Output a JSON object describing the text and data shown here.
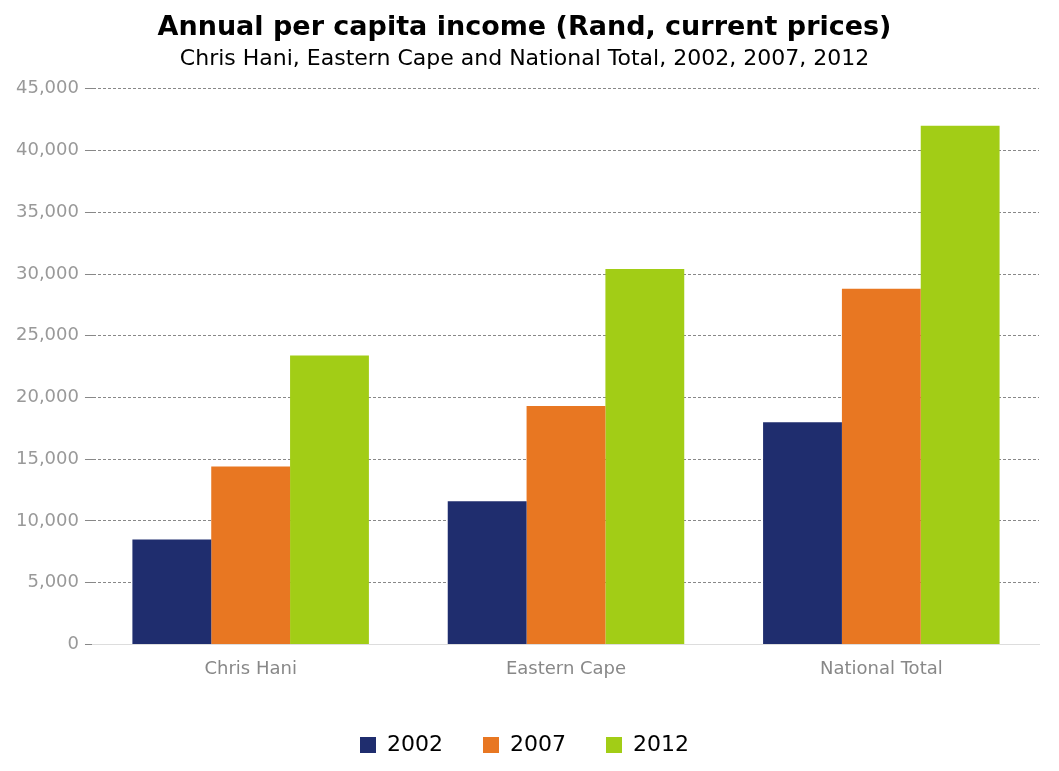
{
  "chart_data": {
    "type": "bar",
    "title": "Annual per capita income (Rand, current prices)",
    "subtitle": "Chris Hani, Eastern Cape and National Total, 2002, 2007, 2012",
    "categories": [
      "Chris Hani",
      "Eastern Cape",
      "National Total"
    ],
    "series": [
      {
        "name": "2002",
        "color": "#1f2d6e",
        "values": [
          8500,
          11600,
          18000
        ]
      },
      {
        "name": "2007",
        "color": "#e87722",
        "values": [
          14400,
          19300,
          28800
        ]
      },
      {
        "name": "2012",
        "color": "#a2cd16",
        "values": [
          23400,
          30400,
          42000
        ]
      }
    ],
    "ylim": [
      0,
      45000
    ],
    "yticks": [
      {
        "value": 0,
        "label": "0"
      },
      {
        "value": 5000,
        "label": "5,000"
      },
      {
        "value": 10000,
        "label": "10,000"
      },
      {
        "value": 15000,
        "label": "15,000"
      },
      {
        "value": 20000,
        "label": "20,000"
      },
      {
        "value": 25000,
        "label": "25,000"
      },
      {
        "value": 30000,
        "label": "30,000"
      },
      {
        "value": 35000,
        "label": "35,000"
      },
      {
        "value": 40000,
        "label": "40,000"
      },
      {
        "value": 45000,
        "label": "45,000"
      }
    ],
    "grid": "y",
    "legend": "bottom"
  }
}
